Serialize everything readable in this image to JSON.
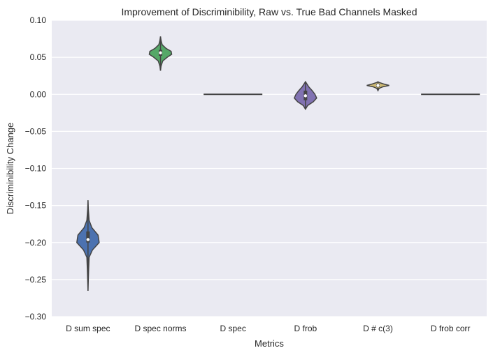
{
  "chart_data": {
    "type": "violin",
    "title": "Improvement of Discriminibility, Raw vs. True Bad Channels Masked",
    "xlabel": "Metrics",
    "ylabel": "Discriminibility Change",
    "ylim": [
      -0.3,
      0.1
    ],
    "yticks": [
      0.1,
      0.05,
      0.0,
      -0.05,
      -0.1,
      -0.15,
      -0.2,
      -0.25,
      -0.3
    ],
    "ytick_labels": [
      "0.10",
      "0.05",
      "0.00",
      "−0.05",
      "−0.10",
      "−0.15",
      "−0.20",
      "−0.25",
      "−0.30"
    ],
    "grid": true,
    "categories": [
      "D sum spec",
      "D spec norms",
      "D spec",
      "D frob",
      "D # c(3)",
      "D frob corr"
    ],
    "series": [
      {
        "category": "D sum spec",
        "color": "#4c72b0",
        "min": -0.265,
        "max": -0.143,
        "q1": -0.2,
        "median": -0.196,
        "q3": -0.185,
        "density": [
          [
            -0.265,
            0.0
          ],
          [
            -0.25,
            0.03
          ],
          [
            -0.235,
            0.06
          ],
          [
            -0.22,
            0.1
          ],
          [
            -0.21,
            0.4
          ],
          [
            -0.2,
            1.0
          ],
          [
            -0.19,
            0.9
          ],
          [
            -0.18,
            0.35
          ],
          [
            -0.17,
            0.1
          ],
          [
            -0.155,
            0.03
          ],
          [
            -0.143,
            0.0
          ]
        ]
      },
      {
        "category": "D spec norms",
        "color": "#55a868",
        "min": 0.032,
        "max": 0.078,
        "q1": 0.052,
        "median": 0.056,
        "q3": 0.06,
        "density": [
          [
            0.032,
            0.0
          ],
          [
            0.038,
            0.05
          ],
          [
            0.045,
            0.2
          ],
          [
            0.05,
            0.6
          ],
          [
            0.054,
            1.0
          ],
          [
            0.058,
            0.95
          ],
          [
            0.062,
            0.5
          ],
          [
            0.067,
            0.15
          ],
          [
            0.072,
            0.06
          ],
          [
            0.078,
            0.0
          ]
        ]
      },
      {
        "category": "D spec",
        "color": "#c44e52",
        "min": 0.0,
        "max": 0.0,
        "q1": 0.0,
        "median": 0.0,
        "q3": 0.0,
        "flat": true
      },
      {
        "category": "D frob",
        "color": "#8172b2",
        "min": -0.02,
        "max": 0.017,
        "q1": -0.008,
        "median": -0.002,
        "q3": 0.005,
        "density": [
          [
            -0.02,
            0.0
          ],
          [
            -0.015,
            0.2
          ],
          [
            -0.01,
            0.7
          ],
          [
            -0.005,
            1.0
          ],
          [
            0.0,
            0.85
          ],
          [
            0.005,
            0.6
          ],
          [
            0.01,
            0.3
          ],
          [
            0.017,
            0.0
          ]
        ]
      },
      {
        "category": "D # c(3)",
        "color": "#ccb974",
        "min": 0.005,
        "max": 0.017,
        "q1": 0.01,
        "median": 0.012,
        "q3": 0.014,
        "density": [
          [
            0.005,
            0.0
          ],
          [
            0.008,
            0.1
          ],
          [
            0.01,
            0.4
          ],
          [
            0.012,
            1.0
          ],
          [
            0.014,
            0.5
          ],
          [
            0.016,
            0.1
          ],
          [
            0.017,
            0.0
          ]
        ]
      },
      {
        "category": "D frob corr",
        "color": "#64b5cd",
        "min": 0.0,
        "max": 0.0,
        "q1": 0.0,
        "median": 0.0,
        "q3": 0.0,
        "flat": true
      }
    ]
  }
}
